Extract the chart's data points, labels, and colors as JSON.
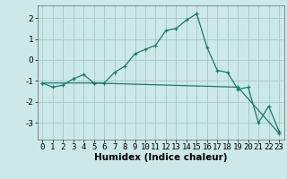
{
  "xlabel": "Humidex (Indice chaleur)",
  "ylabel": "",
  "bg_color": "#cce8e8",
  "grid_color": "#aacccc",
  "line_color": "#1a7a6e",
  "line1_x": [
    0,
    1,
    2,
    3,
    4,
    5,
    6,
    7,
    8,
    9,
    10,
    11,
    12,
    13,
    14,
    15,
    16,
    17,
    18,
    19,
    20,
    21,
    22,
    23
  ],
  "line1_y": [
    -1.1,
    -1.3,
    -1.2,
    -0.9,
    -0.7,
    -1.1,
    -1.1,
    -0.6,
    -0.3,
    0.3,
    0.5,
    0.7,
    1.4,
    1.5,
    1.9,
    2.2,
    0.6,
    -0.5,
    -0.6,
    -1.4,
    -1.3,
    -3.0,
    -2.2,
    -3.4
  ],
  "line2_x": [
    0,
    5,
    19,
    23
  ],
  "line2_y": [
    -1.1,
    -1.1,
    -1.3,
    -3.5
  ],
  "xlim": [
    -0.5,
    23.5
  ],
  "ylim": [
    -3.8,
    2.6
  ],
  "xticks": [
    0,
    1,
    2,
    3,
    4,
    5,
    6,
    7,
    8,
    9,
    10,
    11,
    12,
    13,
    14,
    15,
    16,
    17,
    18,
    19,
    20,
    21,
    22,
    23
  ],
  "yticks": [
    -3,
    -2,
    -1,
    0,
    1,
    2
  ],
  "tick_fontsize": 6.5,
  "xlabel_fontsize": 7.5
}
